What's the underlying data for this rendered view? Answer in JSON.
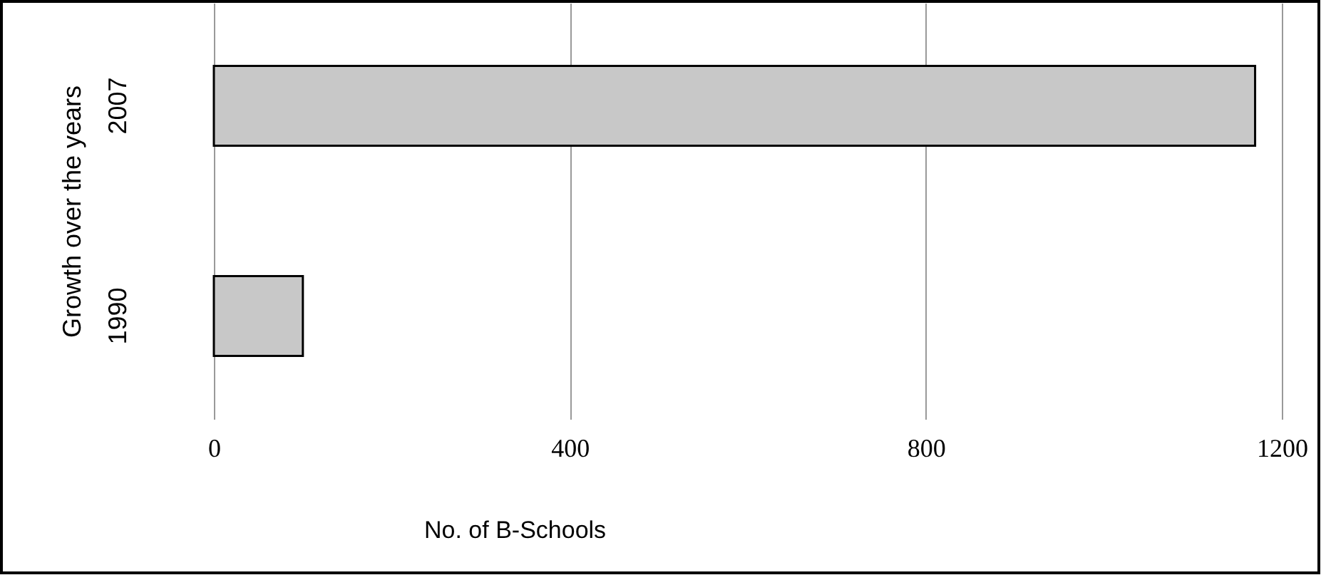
{
  "chart_data": {
    "type": "bar",
    "orientation": "horizontal",
    "categories": [
      "2007",
      "1990"
    ],
    "values": [
      1170,
      100
    ],
    "color": "#c8c8c8",
    "xlabel": "No. of B-Schools",
    "ylabel": "Growth over the years",
    "xlim": [
      0,
      1200
    ],
    "xticks": [
      0,
      400,
      800,
      1200
    ],
    "grid": "x"
  }
}
